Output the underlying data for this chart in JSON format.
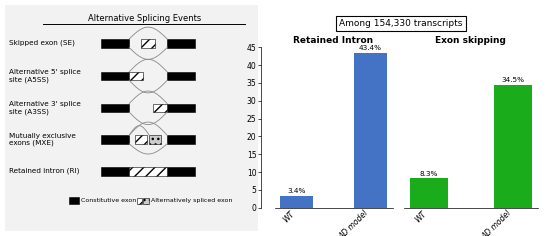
{
  "title_box": "Among 154,330 transcripts",
  "left_title": "Alternative Splicing Events",
  "left_labels": [
    "Skipped exon (SE)",
    "Alternative 5' splice\nsite (A5SS)",
    "Alternative 3' splice\nsite (A3SS)",
    "Mutually exclusive\nexons (MXE)",
    "Retained intron (RI)"
  ],
  "legend_items": [
    "Constitutive exon",
    "Alternatively spliced exon"
  ],
  "chart1_title": "Retained Intron",
  "chart2_title": "Exon skipping",
  "categories": [
    "WT",
    "AD model"
  ],
  "ri_values": [
    3.4,
    43.4
  ],
  "se_values": [
    8.3,
    34.5
  ],
  "ri_color": "#4472c4",
  "se_color": "#1aac1a",
  "ri_labels": [
    "3.4%",
    "43.4%"
  ],
  "se_labels": [
    "8.3%",
    "34.5%"
  ],
  "ylim": [
    0,
    45
  ],
  "yticks": [
    0,
    5,
    10,
    15,
    20,
    25,
    30,
    35,
    40,
    45
  ],
  "bg_color": "#f2f2f2",
  "panel_bg": "#ffffff"
}
